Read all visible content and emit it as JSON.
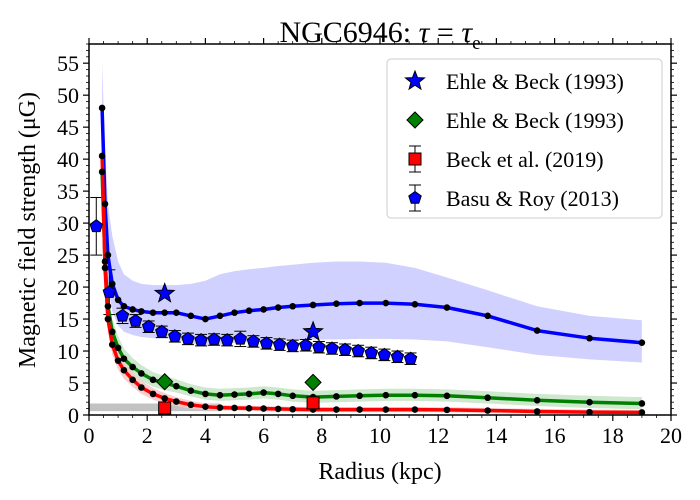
{
  "chart_data": {
    "type": "line",
    "title_main": "NGC6946: ",
    "title_tau": "τ",
    "title_eq": " = ",
    "title_tau_e": "τ",
    "title_sub": "e",
    "xlabel": "Radius (kpc)",
    "ylabel": "Magnetic field strength (μG)",
    "xlim": [
      0,
      20
    ],
    "ylim": [
      0,
      58
    ],
    "x_ticks": [
      0,
      2,
      4,
      6,
      8,
      10,
      12,
      14,
      16,
      18,
      20
    ],
    "y_ticks": [
      0,
      5,
      10,
      15,
      20,
      25,
      30,
      35,
      40,
      45,
      50,
      55
    ],
    "grid": false,
    "legend_position": "top-right",
    "legend": [
      {
        "label": "Ehle & Beck (1993)",
        "marker": "star",
        "color": "#0000ff"
      },
      {
        "label": "Ehle & Beck (1993)",
        "marker": "diamond",
        "color": "#008000"
      },
      {
        "label": "Beck et al. (2019)",
        "marker": "square-errorbar",
        "color": "#ff0000"
      },
      {
        "label": "Basu & Roy (2013)",
        "marker": "pentagon-errorbar",
        "color": "#0000ff"
      }
    ],
    "series": [
      {
        "color": "#0000ff",
        "band_color": "#ccccff",
        "x": [
          0.45,
          0.55,
          0.65,
          0.8,
          1.0,
          1.2,
          1.5,
          1.8,
          2.2,
          2.6,
          3.0,
          3.5,
          4.0,
          4.5,
          5.0,
          5.5,
          6.0,
          6.5,
          7.0,
          7.7,
          8.5,
          9.3,
          10.2,
          11.2,
          12.3,
          13.7,
          15.4,
          17.2,
          19.0
        ],
        "y": [
          48,
          33,
          25,
          20.5,
          18,
          17,
          16.5,
          16.2,
          16,
          16,
          16,
          15.5,
          15,
          15.5,
          16,
          16.3,
          16.5,
          16.8,
          17,
          17.2,
          17.4,
          17.5,
          17.5,
          17.3,
          16.8,
          15.5,
          13.2,
          12,
          11.3
        ],
        "band_upper": [
          55,
          42,
          33,
          28,
          24,
          22,
          21,
          20.5,
          20.3,
          20.3,
          20.3,
          20.5,
          21,
          22,
          22.5,
          22.8,
          23,
          23.3,
          23.5,
          23.8,
          24,
          24,
          23.8,
          23,
          21.5,
          19.5,
          17,
          15.5,
          14.8
        ],
        "band_lower": [
          40,
          26,
          20,
          16.2,
          14,
          13,
          12.5,
          12.2,
          12,
          12,
          11.8,
          11.2,
          10.7,
          11,
          11.3,
          11.5,
          11.5,
          11.7,
          11.7,
          11.8,
          11.8,
          11.9,
          11.9,
          11.8,
          11.5,
          10.6,
          9.4,
          8.7,
          8.2
        ]
      },
      {
        "color": "#008000",
        "band_color": "#c8e6c8",
        "x": [
          0.45,
          0.55,
          0.65,
          0.8,
          1.0,
          1.2,
          1.5,
          1.8,
          2.2,
          2.6,
          3.0,
          3.5,
          4.0,
          4.5,
          5.0,
          5.5,
          6.0,
          6.5,
          7.0,
          7.7,
          8.5,
          9.3,
          10.2,
          11.2,
          12.3,
          13.7,
          15.4,
          17.2,
          19.0
        ],
        "y": [
          38,
          24,
          17,
          13,
          10.5,
          8.8,
          7.5,
          6.5,
          5.5,
          5,
          4.5,
          3.8,
          3.3,
          3.1,
          3.2,
          3.3,
          3.5,
          3.3,
          3.0,
          2.8,
          2.9,
          3.0,
          3.1,
          3.1,
          3.0,
          2.7,
          2.3,
          2.0,
          1.8
        ],
        "band_upper": [
          41,
          27,
          19.5,
          15,
          12.3,
          10.4,
          8.9,
          7.8,
          6.7,
          6.1,
          5.6,
          4.8,
          4.3,
          4.1,
          4.2,
          4.3,
          4.5,
          4.3,
          4.0,
          3.8,
          3.9,
          4.0,
          4.1,
          4.1,
          4.0,
          3.7,
          3.3,
          3.0,
          2.8
        ],
        "band_lower": [
          35,
          21.5,
          15,
          11.2,
          8.9,
          7.3,
          6.2,
          5.3,
          4.4,
          3.9,
          3.5,
          2.9,
          2.4,
          2.2,
          2.3,
          2.4,
          2.6,
          2.4,
          2.1,
          1.9,
          2.0,
          2.1,
          2.2,
          2.2,
          2.1,
          1.8,
          1.4,
          1.1,
          0.9
        ]
      },
      {
        "color": "#ff0000",
        "band_color": "#f8c8c8",
        "x": [
          0.45,
          0.55,
          0.65,
          0.8,
          1.0,
          1.2,
          1.5,
          1.8,
          2.2,
          2.6,
          3.0,
          3.5,
          4.0,
          4.5,
          5.0,
          5.5,
          6.0,
          6.5,
          7.0,
          7.7,
          8.5,
          9.3,
          10.2,
          11.2,
          12.3,
          13.7,
          15.4,
          17.2,
          19.0
        ],
        "y": [
          40.5,
          23,
          15,
          11,
          8.5,
          7,
          5.5,
          4.3,
          3.3,
          2.6,
          2.1,
          1.6,
          1.3,
          1.15,
          1.1,
          1.05,
          1.0,
          0.95,
          0.9,
          0.85,
          0.85,
          0.85,
          0.85,
          0.85,
          0.8,
          0.7,
          0.55,
          0.45,
          0.4
        ],
        "band_upper": [
          42.5,
          25,
          16.8,
          12.6,
          9.9,
          8.3,
          6.6,
          5.3,
          4.2,
          3.4,
          2.8,
          2.2,
          1.8,
          1.6,
          1.5,
          1.45,
          1.4,
          1.35,
          1.3,
          1.25,
          1.25,
          1.25,
          1.25,
          1.25,
          1.2,
          1.1,
          0.95,
          0.85,
          0.8
        ],
        "band_lower": [
          38.5,
          21,
          13.2,
          9.4,
          7.1,
          5.7,
          4.4,
          3.3,
          2.4,
          1.8,
          1.4,
          1.0,
          0.8,
          0.7,
          0.7,
          0.65,
          0.6,
          0.55,
          0.5,
          0.45,
          0.45,
          0.45,
          0.45,
          0.45,
          0.4,
          0.3,
          0.15,
          0.05,
          0.0
        ]
      }
    ],
    "gray_band": {
      "x": [
        0,
        4.5
      ],
      "y": [
        0.6,
        1.8
      ],
      "color": "#b3b3b3"
    },
    "observations": {
      "ehle_beck_total_stars": {
        "color": "#0000ff",
        "points": [
          [
            2.6,
            19
          ],
          [
            7.7,
            13
          ]
        ]
      },
      "ehle_beck_ordered_diamonds": {
        "color": "#008000",
        "points": [
          [
            2.6,
            5.2
          ],
          [
            7.7,
            5.1
          ]
        ]
      },
      "beck_2019_squares": {
        "color": "#ff0000",
        "points": [
          [
            2.6,
            1.1
          ],
          [
            7.7,
            1.9
          ]
        ],
        "yerr": [
          0.4,
          0.8
        ]
      },
      "basu_roy_2013_pentagons": {
        "color": "#0000ff",
        "x": [
          0.25,
          0.7,
          1.15,
          1.6,
          2.05,
          2.5,
          2.95,
          3.4,
          3.85,
          4.3,
          4.75,
          5.2,
          5.65,
          6.1,
          6.55,
          7.0,
          7.45,
          7.9,
          8.35,
          8.8,
          9.25,
          9.7,
          10.15,
          10.6,
          11.05
        ],
        "y": [
          29.5,
          19.2,
          15.5,
          14.7,
          13.8,
          13.0,
          12.3,
          11.9,
          11.7,
          11.8,
          11.7,
          11.9,
          11.5,
          11.2,
          11.0,
          10.8,
          10.9,
          10.6,
          10.4,
          10.2,
          10.0,
          9.7,
          9.4,
          9.1,
          8.8
        ],
        "yerr": [
          4.5,
          3.5,
          1.2,
          1.0,
          0.9,
          0.9,
          0.9,
          0.9,
          0.9,
          0.9,
          0.9,
          1.2,
          0.9,
          0.9,
          0.9,
          0.9,
          0.9,
          0.9,
          0.9,
          0.9,
          0.9,
          0.9,
          0.9,
          0.9,
          0.9
        ]
      }
    }
  }
}
